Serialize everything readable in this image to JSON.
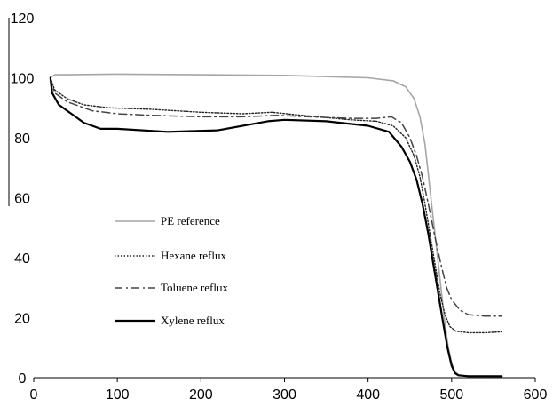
{
  "chart_data": {
    "type": "line",
    "title": "",
    "xlabel": "",
    "ylabel": "",
    "xlim": [
      0,
      600
    ],
    "ylim": [
      0,
      120
    ],
    "x_ticks": [
      0,
      100,
      200,
      300,
      400,
      500,
      600
    ],
    "y_ticks": [
      0,
      20,
      40,
      60,
      80,
      100,
      120
    ],
    "grid": false,
    "legend_position": "center-left",
    "series": [
      {
        "name": "PE reference",
        "color": "#a6a6a6",
        "style": "solid",
        "points": [
          [
            20,
            100
          ],
          [
            25,
            101
          ],
          [
            40,
            101
          ],
          [
            100,
            101.2
          ],
          [
            200,
            101
          ],
          [
            300,
            100.8
          ],
          [
            400,
            100
          ],
          [
            430,
            99
          ],
          [
            445,
            97
          ],
          [
            455,
            93
          ],
          [
            462,
            87
          ],
          [
            468,
            78
          ],
          [
            472,
            68
          ],
          [
            476,
            58
          ],
          [
            480,
            48
          ],
          [
            484,
            38
          ],
          [
            488,
            28
          ],
          [
            492,
            18
          ],
          [
            496,
            10
          ],
          [
            500,
            5
          ],
          [
            504,
            2
          ],
          [
            508,
            1
          ],
          [
            515,
            0.6
          ],
          [
            560,
            0.5
          ]
        ]
      },
      {
        "name": "Hexane reflux",
        "color": "#222222",
        "style": "dotted",
        "points": [
          [
            20,
            100
          ],
          [
            25,
            96
          ],
          [
            40,
            93
          ],
          [
            60,
            91
          ],
          [
            90,
            90
          ],
          [
            140,
            89.5
          ],
          [
            200,
            88.5
          ],
          [
            250,
            88
          ],
          [
            285,
            88.5
          ],
          [
            320,
            87.5
          ],
          [
            380,
            86
          ],
          [
            410,
            85.5
          ],
          [
            430,
            84
          ],
          [
            445,
            80
          ],
          [
            455,
            74
          ],
          [
            462,
            67
          ],
          [
            468,
            58
          ],
          [
            474,
            48
          ],
          [
            480,
            38
          ],
          [
            486,
            28
          ],
          [
            492,
            21
          ],
          [
            498,
            17
          ],
          [
            505,
            15.5
          ],
          [
            520,
            15
          ],
          [
            540,
            15
          ],
          [
            560,
            15.3
          ]
        ]
      },
      {
        "name": "Toluene reflux",
        "color": "#444444",
        "style": "dashdot",
        "points": [
          [
            20,
            100
          ],
          [
            25,
            95
          ],
          [
            40,
            92
          ],
          [
            70,
            89
          ],
          [
            100,
            88
          ],
          [
            140,
            87.5
          ],
          [
            200,
            87
          ],
          [
            250,
            87
          ],
          [
            290,
            87.5
          ],
          [
            330,
            87
          ],
          [
            380,
            86.5
          ],
          [
            410,
            86.5
          ],
          [
            428,
            87
          ],
          [
            440,
            85
          ],
          [
            450,
            80
          ],
          [
            458,
            74
          ],
          [
            465,
            67
          ],
          [
            472,
            58
          ],
          [
            480,
            47
          ],
          [
            487,
            38
          ],
          [
            494,
            30
          ],
          [
            500,
            26
          ],
          [
            510,
            22.5
          ],
          [
            520,
            21
          ],
          [
            540,
            20.5
          ],
          [
            560,
            20.5
          ]
        ]
      },
      {
        "name": "Xylene reflux",
        "color": "#000000",
        "style": "solid",
        "points": [
          [
            20,
            100
          ],
          [
            22,
            95
          ],
          [
            30,
            91
          ],
          [
            45,
            88
          ],
          [
            60,
            85
          ],
          [
            80,
            83
          ],
          [
            100,
            83
          ],
          [
            160,
            82
          ],
          [
            220,
            82.5
          ],
          [
            260,
            84.5
          ],
          [
            280,
            85.5
          ],
          [
            300,
            86
          ],
          [
            350,
            85.5
          ],
          [
            400,
            84
          ],
          [
            425,
            82
          ],
          [
            440,
            77
          ],
          [
            450,
            72
          ],
          [
            458,
            66
          ],
          [
            465,
            58
          ],
          [
            472,
            48
          ],
          [
            478,
            38
          ],
          [
            484,
            28
          ],
          [
            490,
            18
          ],
          [
            495,
            10
          ],
          [
            500,
            4
          ],
          [
            504,
            1.5
          ],
          [
            508,
            0.8
          ],
          [
            520,
            0.5
          ],
          [
            560,
            0.5
          ]
        ]
      }
    ]
  }
}
